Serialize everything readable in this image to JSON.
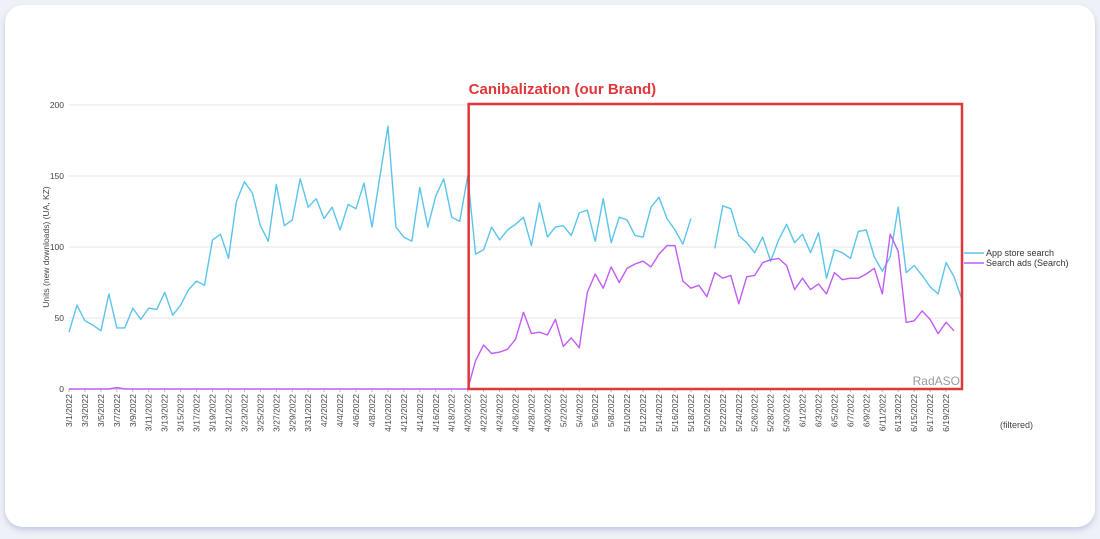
{
  "chart_data": {
    "type": "line",
    "ylabel": "Units (new downloads) (UA, KZ)",
    "ylim": [
      0,
      200
    ],
    "yticks": [
      0,
      50,
      100,
      150,
      200
    ],
    "x_start": "3/1/2022",
    "x_tick_labels": [
      "3/1/2022",
      "3/3/2022",
      "3/5/2022",
      "3/7/2022",
      "3/9/2022",
      "3/11/2022",
      "3/13/2022",
      "3/15/2022",
      "3/17/2022",
      "3/19/2022",
      "3/21/2022",
      "3/23/2022",
      "3/25/2022",
      "3/27/2022",
      "3/29/2022",
      "3/31/2022",
      "4/2/2022",
      "4/4/2022",
      "4/6/2022",
      "4/8/2022",
      "4/10/2022",
      "4/12/2022",
      "4/14/2022",
      "4/16/2022",
      "4/18/2022",
      "4/20/2022",
      "4/22/2022",
      "4/24/2022",
      "4/26/2022",
      "4/28/2022",
      "4/30/2022",
      "5/2/2022",
      "5/4/2022",
      "5/6/2022",
      "5/8/2022",
      "5/10/2022",
      "5/12/2022",
      "5/14/2022",
      "5/16/2022",
      "5/18/2022",
      "5/20/2022",
      "5/22/2022",
      "5/24/2022",
      "5/26/2022",
      "5/28/2022",
      "5/30/2022",
      "6/1/2022",
      "6/3/2022",
      "6/5/2022",
      "6/7/2022",
      "6/9/2022",
      "6/11/2022",
      "6/13/2022",
      "6/15/2022",
      "6/17/2022",
      "6/19/2022"
    ],
    "grid": true,
    "legend_position": "right",
    "series": [
      {
        "name": "App store search",
        "color": "#5bc4ec",
        "values": [
          40,
          59,
          48,
          45,
          41,
          67,
          43,
          43,
          57,
          49,
          57,
          56,
          68,
          52,
          59,
          70,
          76,
          73,
          105,
          109,
          92,
          132,
          146,
          138,
          115,
          104,
          144,
          115,
          119,
          148,
          128,
          134,
          120,
          128,
          112,
          130,
          127,
          145,
          114,
          150,
          185,
          114,
          107,
          104,
          142,
          114,
          136,
          148,
          121,
          118,
          150,
          95,
          98,
          114,
          105,
          112,
          116,
          121,
          101,
          131,
          107,
          114,
          115,
          108,
          124,
          126,
          104,
          134,
          103,
          121,
          119,
          108,
          107,
          128,
          135,
          120,
          112,
          102,
          120,
          null,
          null,
          99,
          129,
          127,
          108,
          103,
          96,
          107,
          90,
          105,
          116,
          103,
          109,
          96,
          110,
          78,
          98,
          96,
          92,
          111,
          112,
          93,
          83,
          93,
          128,
          82,
          87,
          80,
          72,
          67,
          89,
          79,
          63
        ]
      },
      {
        "name": "Search ads (Search)",
        "color": "#c15cf5",
        "values": [
          0,
          0,
          0,
          0,
          0,
          0,
          1,
          0,
          0,
          0,
          0,
          0,
          0,
          0,
          0,
          0,
          0,
          0,
          0,
          0,
          0,
          0,
          0,
          0,
          0,
          0,
          0,
          0,
          0,
          0,
          0,
          0,
          0,
          0,
          0,
          0,
          0,
          0,
          0,
          0,
          0,
          0,
          0,
          0,
          0,
          0,
          0,
          0,
          0,
          0,
          0,
          20,
          31,
          25,
          26,
          28,
          35,
          54,
          39,
          40,
          38,
          49,
          30,
          36,
          29,
          68,
          81,
          71,
          86,
          75,
          85,
          88,
          90,
          86,
          95,
          101,
          101,
          76,
          71,
          73,
          65,
          82,
          78,
          80,
          60,
          79,
          80,
          89,
          91,
          92,
          87,
          70,
          78,
          70,
          74,
          67,
          82,
          77,
          78,
          78,
          81,
          85,
          67,
          109,
          97,
          47,
          48,
          55,
          49,
          39,
          47,
          41
        ]
      }
    ],
    "annotation": {
      "label": "Canibalization (our Brand)",
      "start_index": 50,
      "end_index": 112,
      "color": "#e0373a"
    },
    "watermark": "RadASO",
    "note": "(filtered)"
  }
}
